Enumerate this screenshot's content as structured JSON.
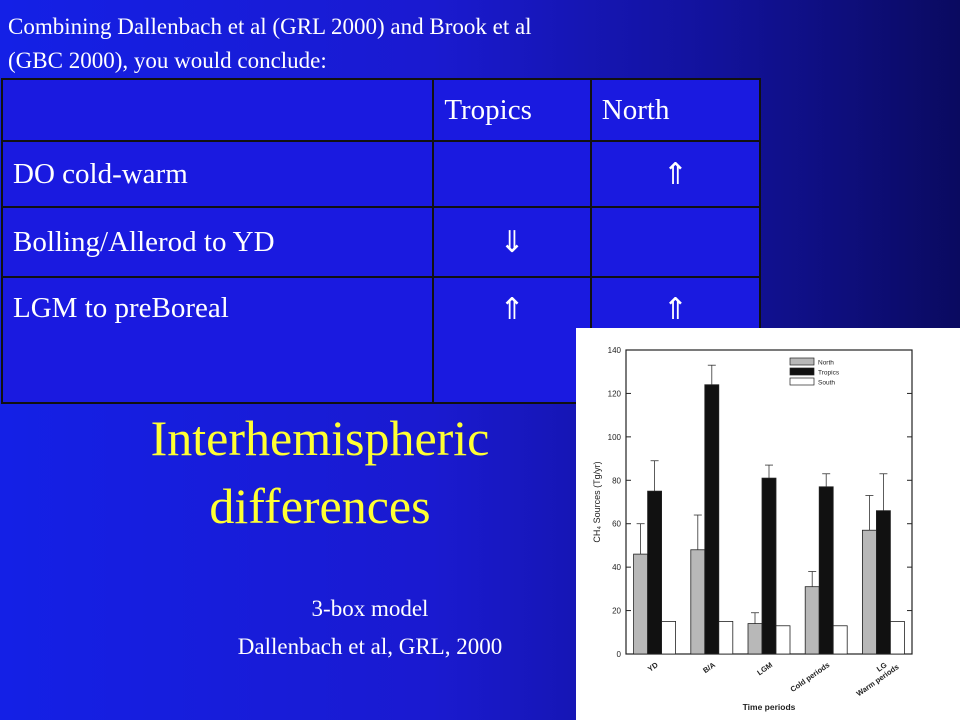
{
  "intro": {
    "line1": "Combining Dallenbach et al (GRL 2000) and Brook et al",
    "line2": "(GBC 2000), you would conclude:"
  },
  "table": {
    "headers": [
      "",
      "Tropics",
      "North"
    ],
    "rows": [
      {
        "label": "DO cold-warm",
        "tropics": "",
        "north": "⇑"
      },
      {
        "label": "Bolling/Allerod to YD",
        "tropics": "⇓",
        "north": ""
      },
      {
        "label": "LGM to preBoreal",
        "tropics": "⇑",
        "north": "⇑"
      }
    ]
  },
  "headline": {
    "line1": "Interhemispheric",
    "line2": "differences"
  },
  "caption": {
    "line1": "3-box model",
    "line2": "Dallenbach et al, GRL, 2000"
  },
  "colors": {
    "headline": "#ffff33",
    "background": "#1a1ad0"
  },
  "chart_data": {
    "type": "bar",
    "categories": [
      "YD",
      "B/A",
      "LGM",
      "Cold periods",
      "LG\nWarm periods"
    ],
    "series": [
      {
        "name": "North",
        "values": [
          46,
          48,
          14,
          31,
          57
        ],
        "errors": [
          14,
          16,
          5,
          7,
          16
        ],
        "color": "#b8b8b8"
      },
      {
        "name": "Tropics",
        "values": [
          75,
          124,
          81,
          77,
          66
        ],
        "errors": [
          14,
          9,
          6,
          6,
          17
        ],
        "color": "#111111"
      },
      {
        "name": "South",
        "values": [
          15,
          15,
          13,
          13,
          15
        ],
        "errors": [
          0,
          0,
          0,
          0,
          0
        ],
        "color": "#ffffff"
      }
    ],
    "xlabel": "Time periods",
    "ylabel": "CH₄ Sources (Tg/yr)",
    "ylim": [
      0,
      140
    ],
    "yticks": [
      0,
      20,
      40,
      60,
      80,
      100,
      120,
      140
    ],
    "legend": "top-right",
    "grid": false
  }
}
